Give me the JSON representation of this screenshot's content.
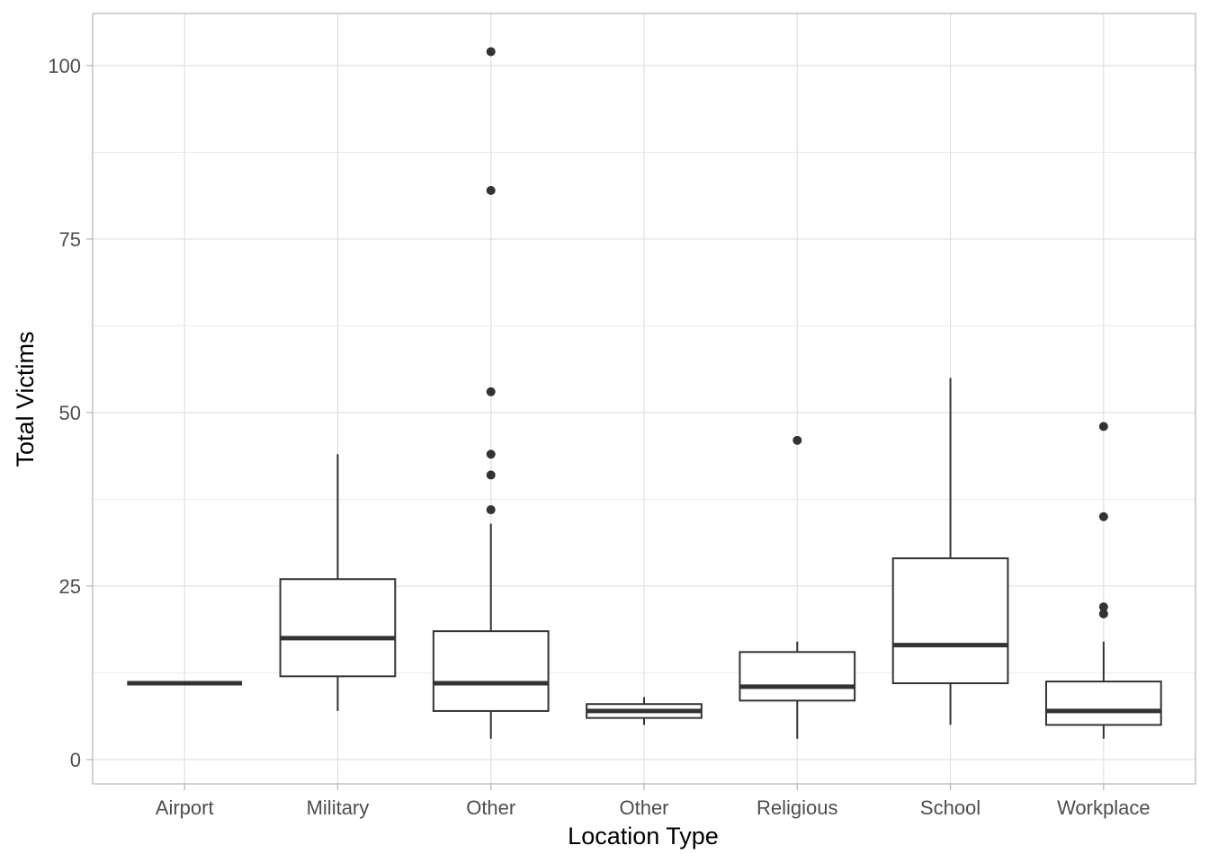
{
  "chart_data": {
    "type": "boxplot",
    "title": "",
    "xlabel": "Location Type",
    "ylabel": "Total Victims",
    "ylim": [
      -3.5,
      107.5
    ],
    "yticks": [
      0,
      25,
      50,
      75,
      100
    ],
    "grid": true,
    "legend": "none",
    "categories": [
      "Airport",
      "Military",
      "Other",
      "Other",
      "Religious",
      "School",
      "Workplace"
    ],
    "boxes": [
      {
        "category": "Airport",
        "whisker_low": 11,
        "q1": 11,
        "median": 11,
        "q3": 11,
        "whisker_high": 11,
        "outliers": []
      },
      {
        "category": "Military",
        "whisker_low": 7,
        "q1": 12,
        "median": 17.5,
        "q3": 26,
        "whisker_high": 44,
        "outliers": []
      },
      {
        "category": "Other",
        "whisker_low": 3,
        "q1": 7,
        "median": 11,
        "q3": 18.5,
        "whisker_high": 34,
        "outliers": [
          36,
          41,
          44,
          53,
          82,
          102
        ]
      },
      {
        "category": "Other",
        "whisker_low": 5,
        "q1": 6,
        "median": 7,
        "q3": 8,
        "whisker_high": 9,
        "outliers": []
      },
      {
        "category": "Religious",
        "whisker_low": 3,
        "q1": 8.5,
        "median": 10.5,
        "q3": 15.5,
        "whisker_high": 17,
        "outliers": [
          46
        ]
      },
      {
        "category": "School",
        "whisker_low": 5,
        "q1": 11,
        "median": 16.5,
        "q3": 29,
        "whisker_high": 55,
        "outliers": []
      },
      {
        "category": "Workplace",
        "whisker_low": 3,
        "q1": 5,
        "median": 7,
        "q3": 11.25,
        "whisker_high": 17,
        "outliers": [
          21,
          22,
          35,
          48
        ]
      }
    ],
    "colors": {
      "box_stroke": "#333333",
      "box_fill": "#ffffff",
      "grid": "#dedede",
      "panel_border": "#b3b3b3"
    }
  }
}
